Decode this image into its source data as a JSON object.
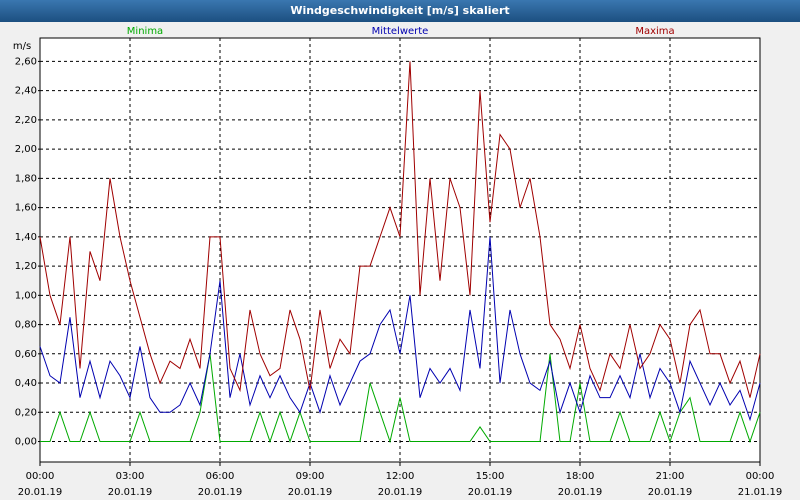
{
  "chart_data": {
    "type": "line",
    "title": "Windgeschwindigkeit [m/s] skaliert",
    "y_label": "m/s",
    "x": [
      0,
      20,
      40,
      60,
      80,
      100,
      120,
      140,
      160,
      180,
      200,
      220,
      240,
      260,
      280,
      300,
      320,
      340,
      360,
      380,
      400,
      420,
      440,
      460,
      480,
      500,
      520,
      540,
      560,
      580,
      600,
      620,
      640,
      660,
      680,
      700,
      720,
      740,
      760,
      780,
      800,
      820,
      840,
      860,
      880,
      900,
      920,
      940,
      960,
      980,
      1000,
      1020,
      1040,
      1060,
      1080,
      1100,
      1120,
      1140,
      1160,
      1180,
      1200,
      1220,
      1240,
      1260,
      1280,
      1300,
      1320,
      1340,
      1360,
      1380,
      1400,
      1420,
      1440
    ],
    "series": [
      {
        "name": "Minima",
        "color": "#00aa00",
        "values": [
          0,
          0,
          0.2,
          0,
          0,
          0.2,
          0,
          0,
          0,
          0,
          0.2,
          0,
          0,
          0,
          0,
          0,
          0.2,
          0.6,
          0,
          0,
          0,
          0,
          0.2,
          0,
          0.2,
          0,
          0.2,
          0,
          0,
          0,
          0,
          0,
          0,
          0.4,
          0.2,
          0,
          0.3,
          0,
          0,
          0,
          0,
          0,
          0,
          0,
          0.1,
          0,
          0,
          0,
          0,
          0,
          0,
          0.6,
          0,
          0,
          0.4,
          0,
          0,
          0,
          0.2,
          0,
          0,
          0,
          0.2,
          0,
          0.2,
          0.3,
          0,
          0,
          0,
          0,
          0.2,
          0,
          0.2
        ]
      },
      {
        "name": "Mittelwerte",
        "color": "#0000b0",
        "values": [
          0.65,
          0.45,
          0.4,
          0.85,
          0.3,
          0.55,
          0.3,
          0.55,
          0.45,
          0.3,
          0.65,
          0.3,
          0.2,
          0.2,
          0.25,
          0.4,
          0.25,
          0.6,
          1.1,
          0.3,
          0.6,
          0.25,
          0.45,
          0.3,
          0.45,
          0.3,
          0.2,
          0.4,
          0.2,
          0.45,
          0.25,
          0.4,
          0.55,
          0.6,
          0.8,
          0.9,
          0.6,
          1.0,
          0.3,
          0.5,
          0.4,
          0.5,
          0.35,
          0.9,
          0.5,
          1.4,
          0.4,
          0.9,
          0.6,
          0.4,
          0.35,
          0.55,
          0.2,
          0.4,
          0.2,
          0.45,
          0.3,
          0.3,
          0.45,
          0.3,
          0.6,
          0.3,
          0.5,
          0.4,
          0.2,
          0.55,
          0.4,
          0.25,
          0.4,
          0.25,
          0.35,
          0.15,
          0.4
        ]
      },
      {
        "name": "Maxima",
        "color": "#a00000",
        "values": [
          1.4,
          1.0,
          0.8,
          1.4,
          0.5,
          1.3,
          1.1,
          1.8,
          1.4,
          1.1,
          0.85,
          0.6,
          0.4,
          0.55,
          0.5,
          0.7,
          0.5,
          1.4,
          1.4,
          0.5,
          0.35,
          0.9,
          0.6,
          0.45,
          0.5,
          0.9,
          0.7,
          0.35,
          0.9,
          0.5,
          0.7,
          0.6,
          1.2,
          1.2,
          1.4,
          1.6,
          1.4,
          2.6,
          1.0,
          1.8,
          1.1,
          1.8,
          1.6,
          1.0,
          2.4,
          1.5,
          2.1,
          2.0,
          1.6,
          1.8,
          1.4,
          0.8,
          0.7,
          0.5,
          0.8,
          0.5,
          0.35,
          0.6,
          0.5,
          0.8,
          0.5,
          0.6,
          0.8,
          0.7,
          0.4,
          0.8,
          0.9,
          0.6,
          0.6,
          0.4,
          0.55,
          0.3,
          0.6
        ]
      }
    ],
    "xlim": [
      0,
      1440
    ],
    "xticks": [
      {
        "value": 0,
        "label": "00:00\n20.01.19"
      },
      {
        "value": 180,
        "label": "03:00\n20.01.19"
      },
      {
        "value": 360,
        "label": "06:00\n20.01.19"
      },
      {
        "value": 540,
        "label": "09:00\n20.01.19"
      },
      {
        "value": 720,
        "label": "12:00\n20.01.19"
      },
      {
        "value": 900,
        "label": "15:00\n20.01.19"
      },
      {
        "value": 1080,
        "label": "18:00\n20.01.19"
      },
      {
        "value": 1260,
        "label": "21:00\n20.01.19"
      },
      {
        "value": 1440,
        "label": "00:00\n21.01.19"
      }
    ],
    "ylim": [
      -0.14,
      2.76
    ],
    "yticks": [
      {
        "value": 0,
        "label": "0,00"
      },
      {
        "value": 0.2,
        "label": "0,20"
      },
      {
        "value": 0.4,
        "label": "0,40"
      },
      {
        "value": 0.6,
        "label": "0,60"
      },
      {
        "value": 0.8,
        "label": "0,80"
      },
      {
        "value": 1.0,
        "label": "1,00"
      },
      {
        "value": 1.2,
        "label": "1,20"
      },
      {
        "value": 1.4,
        "label": "1,40"
      },
      {
        "value": 1.6,
        "label": "1,60"
      },
      {
        "value": 1.8,
        "label": "1,80"
      },
      {
        "value": 2.0,
        "label": "2,00"
      },
      {
        "value": 2.2,
        "label": "2,20"
      },
      {
        "value": 2.4,
        "label": "2,40"
      },
      {
        "value": 2.6,
        "label": "2,60"
      }
    ],
    "grid": true
  }
}
